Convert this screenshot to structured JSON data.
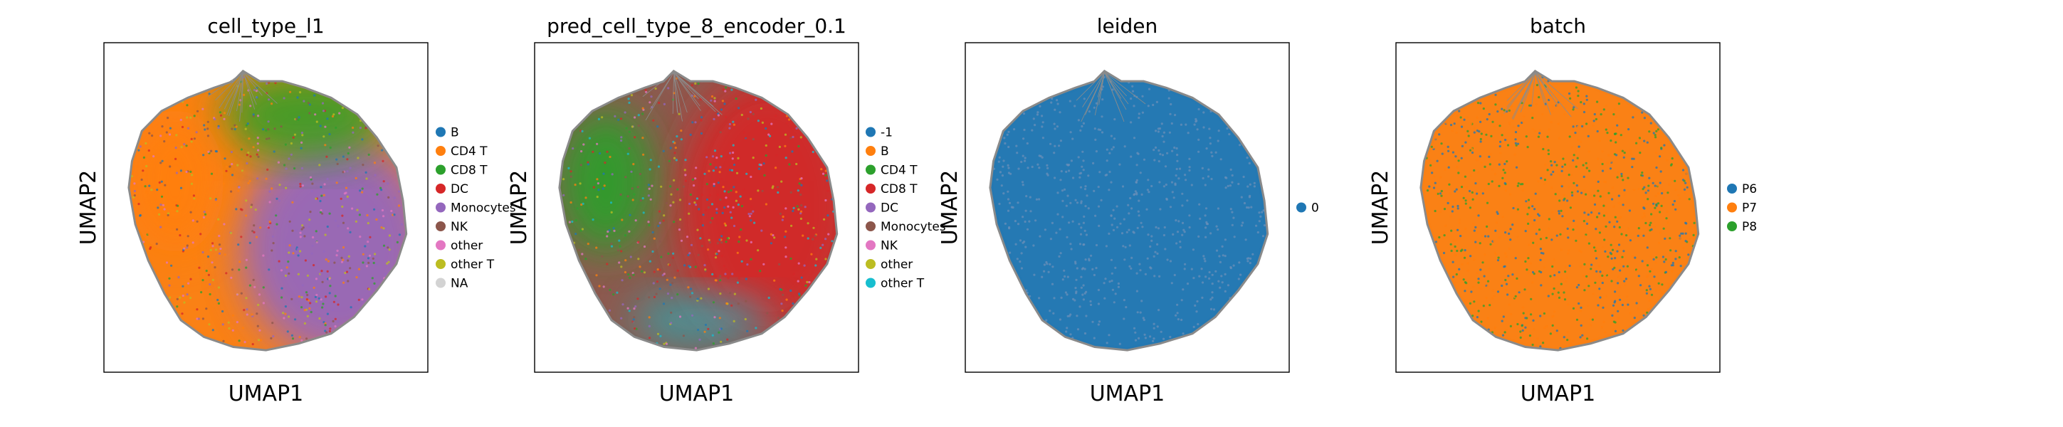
{
  "chart_data": [
    {
      "type": "scatter",
      "title": "cell_type_l1",
      "xlabel": "UMAP1",
      "ylabel": "UMAP2",
      "legend_position": "right",
      "ticks": "none",
      "legend": [
        {
          "label": "B",
          "color": "#1f77b4"
        },
        {
          "label": "CD4 T",
          "color": "#ff7f0e"
        },
        {
          "label": "CD8 T",
          "color": "#2ca02c"
        },
        {
          "label": "DC",
          "color": "#d62728"
        },
        {
          "label": "Monocytes",
          "color": "#9467bd"
        },
        {
          "label": "NK",
          "color": "#8c564b"
        },
        {
          "label": "other",
          "color": "#e377c2"
        },
        {
          "label": "other T",
          "color": "#bcbd22"
        },
        {
          "label": "NA",
          "color": "#d3d3d3"
        }
      ],
      "background_color": "#ff7f0e",
      "regions": [
        {
          "color": "#9467bd",
          "where": "right-bottom"
        },
        {
          "color": "#2ca02c",
          "where": "top"
        },
        {
          "color": "#ff7f0e",
          "where": "left"
        }
      ]
    },
    {
      "type": "scatter",
      "title": "pred_cell_type_8_encoder_0.1",
      "xlabel": "UMAP1",
      "ylabel": "UMAP2",
      "legend_position": "right",
      "ticks": "none",
      "legend": [
        {
          "label": "-1",
          "color": "#1f77b4"
        },
        {
          "label": "B",
          "color": "#ff7f0e"
        },
        {
          "label": "CD4 T",
          "color": "#2ca02c"
        },
        {
          "label": "CD8 T",
          "color": "#d62728"
        },
        {
          "label": "DC",
          "color": "#9467bd"
        },
        {
          "label": "Monocytes",
          "color": "#8c564b"
        },
        {
          "label": "NK",
          "color": "#e377c2"
        },
        {
          "label": "other",
          "color": "#bcbd22"
        },
        {
          "label": "other T",
          "color": "#17becf"
        }
      ],
      "background_color": "#8c564b",
      "regions": [
        {
          "color": "#d62728",
          "where": "right"
        },
        {
          "color": "#2ca02c",
          "where": "left"
        },
        {
          "color": "#17becf",
          "where": "bottom"
        }
      ]
    },
    {
      "type": "scatter",
      "title": "leiden",
      "xlabel": "UMAP1",
      "ylabel": "UMAP2",
      "legend_position": "right",
      "ticks": "none",
      "legend": [
        {
          "label": "0",
          "color": "#1f77b4"
        }
      ],
      "background_color": "#1f77b4",
      "regions": []
    },
    {
      "type": "scatter",
      "title": "batch",
      "xlabel": "UMAP1",
      "ylabel": "UMAP2",
      "legend_position": "right",
      "ticks": "none",
      "legend": [
        {
          "label": "P6",
          "color": "#1f77b4"
        },
        {
          "label": "P7",
          "color": "#ff7f0e"
        },
        {
          "label": "P8",
          "color": "#2ca02c"
        }
      ],
      "background_color": "#ff7f0e",
      "regions": [
        {
          "color": "#1f77b4",
          "where": "speckle"
        }
      ]
    }
  ]
}
